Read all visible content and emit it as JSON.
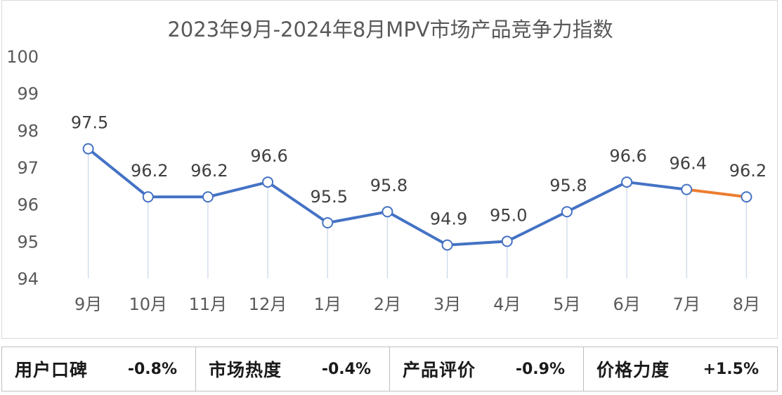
{
  "chart_data": {
    "type": "line",
    "title": "2023年9月-2024年8月MPV市场产品竞争力指数",
    "categories": [
      "9月",
      "10月",
      "11月",
      "12月",
      "1月",
      "2月",
      "3月",
      "4月",
      "5月",
      "6月",
      "7月",
      "8月"
    ],
    "values": [
      97.5,
      96.2,
      96.2,
      96.6,
      95.5,
      95.8,
      94.9,
      95.0,
      95.8,
      96.6,
      96.4,
      96.2
    ],
    "data_labels": [
      "97.5",
      "96.2",
      "96.2",
      "96.6",
      "95.5",
      "95.8",
      "94.9",
      "95.0",
      "95.8",
      "96.6",
      "96.4",
      "96.2"
    ],
    "ylim": [
      94,
      100
    ],
    "yticks": [
      "94",
      "95",
      "96",
      "97",
      "98",
      "99",
      "100"
    ],
    "xlabel": "",
    "ylabel": "",
    "grid": false,
    "legend": "none",
    "colors": {
      "line": "#4472c4",
      "last_segment": "#ed7d31",
      "marker_fill": "#ffffff",
      "drop_line": "#c9d6ea"
    }
  },
  "metrics": [
    {
      "label": "用户口碑",
      "value": "-0.8%"
    },
    {
      "label": "市场热度",
      "value": "-0.4%"
    },
    {
      "label": "产品评价",
      "value": "-0.9%"
    },
    {
      "label": "价格力度",
      "value": "+1.5%"
    }
  ]
}
